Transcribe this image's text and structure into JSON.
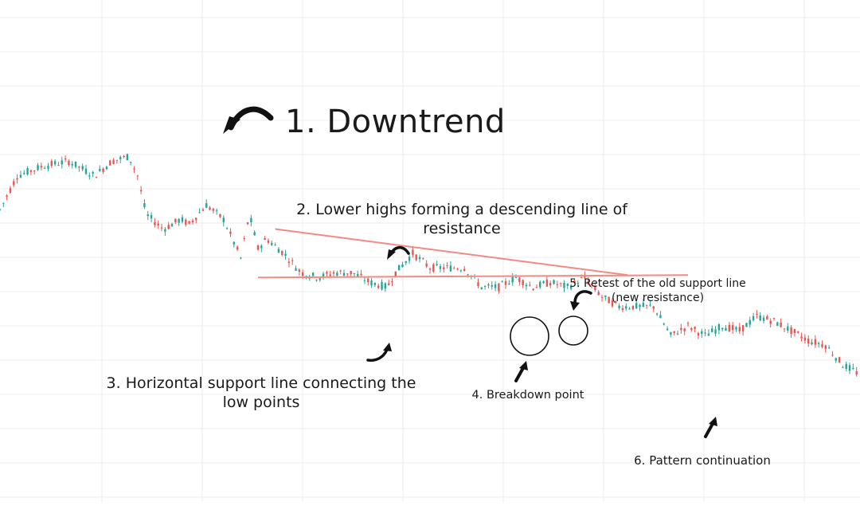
{
  "annotations": {
    "title": "1. Downtrend",
    "label_2_line1": "2. Lower highs forming a descending line of",
    "label_2_line2": "resistance",
    "label_3_line1": "3. Horizontal support line connecting the",
    "label_3_line2": "low points",
    "label_4": "4. Breakdown point",
    "label_5_line1": "5. Retest of the old support line",
    "label_5_line2": "(new resistance)",
    "label_6": "6. Pattern continuation"
  },
  "chart_data": {
    "type": "line",
    "style": "candlestick",
    "title": "",
    "xlabel": "",
    "ylabel": "",
    "grid": true,
    "up_color": "#26a69a",
    "down_color": "#ef5350",
    "trendline_color": "#f28b82",
    "ylim": [
      0,
      100
    ],
    "xlim": [
      0,
      100
    ],
    "series": [
      {
        "role": "price",
        "x": [
          0,
          2,
          5,
          8,
          11,
          13,
          15,
          16,
          17,
          19,
          21,
          22,
          24,
          26,
          27,
          28,
          29,
          30,
          31,
          33,
          35,
          37,
          39,
          41,
          43,
          45,
          46,
          48,
          50,
          52,
          54,
          56,
          58,
          60,
          62,
          64,
          66,
          68,
          70,
          72,
          74,
          76,
          78,
          80,
          82,
          84,
          86,
          88,
          90,
          92,
          94,
          96,
          98,
          100
        ],
        "values": [
          60,
          67,
          69,
          70,
          67,
          70,
          71,
          67,
          59,
          56,
          58,
          57,
          61,
          58,
          54,
          50,
          59,
          52,
          54,
          51,
          47,
          46,
          47,
          47,
          45,
          44,
          47,
          51,
          48,
          48,
          48,
          44,
          44,
          46,
          44,
          45,
          44,
          46,
          42,
          40,
          40,
          40,
          34,
          36,
          34,
          36,
          35,
          38,
          37,
          35,
          33,
          32,
          28,
          26
        ]
      },
      {
        "role": "resistance",
        "x": [
          32,
          73
        ],
        "values": [
          56,
          46.5
        ]
      },
      {
        "role": "support",
        "x": [
          30,
          80
        ],
        "values": [
          46,
          46.5
        ]
      }
    ]
  }
}
